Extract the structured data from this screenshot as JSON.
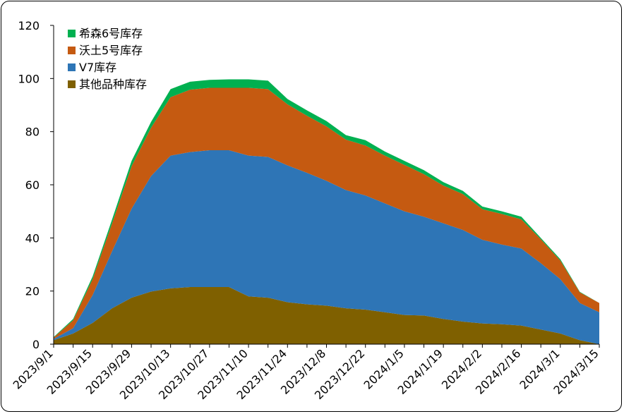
{
  "chart_data": {
    "type": "area",
    "stacked": true,
    "title": "",
    "xlabel": "",
    "ylabel": "",
    "ylim": [
      0,
      120
    ],
    "yticks": [
      0,
      20,
      40,
      60,
      80,
      100,
      120
    ],
    "grid": false,
    "legend_position": "top-left",
    "xtick_labels": [
      "2023/9/1",
      "2023/9/15",
      "2023/9/29",
      "2023/10/13",
      "2023/10/27",
      "2023/11/10",
      "2023/11/24",
      "2023/12/8",
      "2023/12/22",
      "2024/1/5",
      "2024/1/19",
      "2024/2/2",
      "2024/2/16",
      "2024/3/1",
      "2024/3/15"
    ],
    "x": [
      "2023/9/1",
      "2023/9/8",
      "2023/9/15",
      "2023/9/22",
      "2023/9/29",
      "2023/10/6",
      "2023/10/13",
      "2023/10/20",
      "2023/10/27",
      "2023/11/3",
      "2023/11/10",
      "2023/11/17",
      "2023/11/24",
      "2023/12/1",
      "2023/12/8",
      "2023/12/15",
      "2023/12/22",
      "2023/12/29",
      "2024/1/5",
      "2024/1/12",
      "2024/1/19",
      "2024/1/26",
      "2024/2/2",
      "2024/2/9",
      "2024/2/16",
      "2024/2/23",
      "2024/3/1",
      "2024/3/8",
      "2024/3/15"
    ],
    "series": [
      {
        "name": "其他品种库存",
        "color": "#7f6000",
        "values": [
          1.5,
          4,
          8,
          13.5,
          17.5,
          19.8,
          21,
          21.5,
          21.5,
          21.5,
          18,
          17.5,
          15.8,
          15,
          14.5,
          13.5,
          13,
          12,
          11,
          10.8,
          9.5,
          8.5,
          7.8,
          7.5,
          7,
          5.5,
          4,
          1.5,
          0
        ]
      },
      {
        "name": "V7库存",
        "color": "#2e75b6",
        "values": [
          0.5,
          2,
          10.5,
          21.5,
          33.5,
          43.5,
          50,
          50.8,
          51.5,
          51.5,
          53,
          53,
          51.5,
          49.5,
          47,
          44.5,
          43,
          41,
          39,
          37.2,
          36,
          34.5,
          31.5,
          30,
          29,
          25,
          20.5,
          14,
          12
        ]
      },
      {
        "name": "沃土5号库存",
        "color": "#c55a11",
        "values": [
          0.5,
          3,
          6,
          10.5,
          16,
          18.2,
          22,
          23.5,
          23.5,
          23.5,
          25.5,
          25.5,
          23,
          21.5,
          20.5,
          19,
          18.8,
          18,
          17.5,
          16,
          14.2,
          13.5,
          11.5,
          11.5,
          11,
          9,
          7,
          4,
          3.5
        ]
      },
      {
        "name": "希森6号库存",
        "color": "#00b050",
        "values": [
          0.2,
          0.5,
          1,
          1.5,
          2,
          2.2,
          3,
          3,
          3,
          3.2,
          3.2,
          3.2,
          2,
          2,
          2,
          1.7,
          2,
          1.5,
          1.5,
          1.5,
          1.3,
          1.2,
          1,
          1,
          1,
          0.5,
          0.5,
          0.2,
          0
        ]
      }
    ],
    "legend_order": [
      "希森6号库存",
      "沃土5号库存",
      "V7库存",
      "其他品种库存"
    ]
  }
}
